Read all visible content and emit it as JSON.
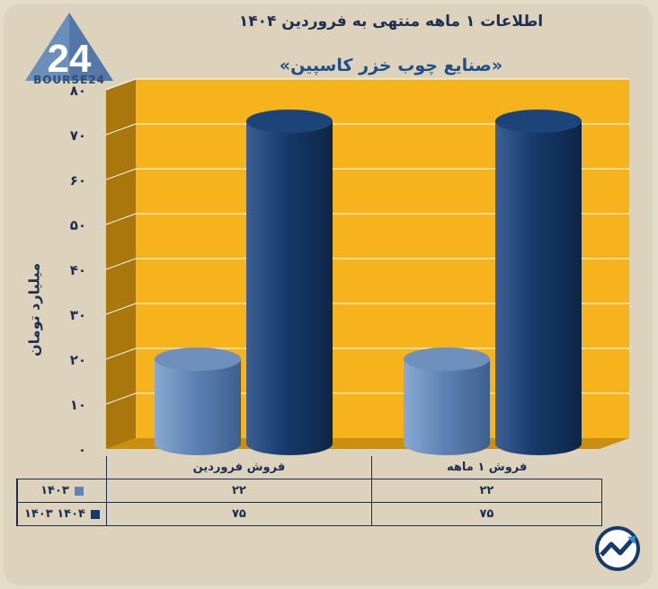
{
  "header": {
    "title": "اطلاعات ۱ ماهه منتهی به فروردین ۱۴۰۴",
    "subtitle": "«صنایع چوب خزر کاسپین»"
  },
  "logo": {
    "text": "BOURSE24",
    "mark": "24"
  },
  "colors": {
    "background": "#ddd3bd",
    "plot_back": "#f7b31b",
    "plot_side": "#a9770b",
    "series_1403": "#5f83b6",
    "series_1404": "#163a6b",
    "text": "#1c2f52"
  },
  "chart_data": {
    "type": "bar",
    "title": "«صنایع چوب خزر کاسپین»",
    "ylabel": "میلیارد تومان",
    "ylim": [
      0,
      80
    ],
    "yticks": [
      "۰",
      "۱۰",
      "۲۰",
      "۳۰",
      "۴۰",
      "۵۰",
      "۶۰",
      "۷۰",
      "۸۰"
    ],
    "categories": [
      "فروش فروردین",
      "فروش ۱ ماهه"
    ],
    "series": [
      {
        "name": "۱۴۰۳",
        "values": [
          22,
          22
        ],
        "labels": [
          "۲۲",
          "۲۲"
        ]
      },
      {
        "name": "۱۴۰۳ ۱۴۰۴",
        "values": [
          75,
          75
        ],
        "labels": [
          "۷۵",
          "۷۵"
        ]
      }
    ],
    "grid": true,
    "legend": "data table below chart"
  },
  "badge_icon": "trend-arrow-icon"
}
